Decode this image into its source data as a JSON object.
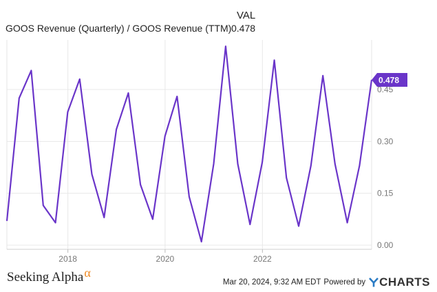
{
  "header": {
    "val_label": "VAL",
    "series_name": "GOOS Revenue (Quarterly) / GOOS Revenue (TTM)",
    "series_value": "0.478"
  },
  "footer": {
    "brand": "Seeking Alpha",
    "brand_mark": "α",
    "timestamp": "Mar 20, 2024, 9:32 AM EDT",
    "powered_by": "Powered by",
    "provider": "YCHARTS"
  },
  "colors": {
    "line": "#6a35c9",
    "grid": "#e4e4e4",
    "accent_brand": "#f08a24",
    "provider_y": "#2a7bc4"
  },
  "chart_data": {
    "type": "line",
    "title": "",
    "xlabel": "",
    "ylabel": "",
    "x_ticks": [
      "2018",
      "2020",
      "2022"
    ],
    "y_ticks": [
      "0.00",
      "0.15",
      "0.30",
      "0.45"
    ],
    "ylim": [
      -0.005,
      0.5
    ],
    "grid": true,
    "last_value_label": "0.478",
    "series": [
      {
        "name": "GOOS Revenue (Quarterly) / GOOS Revenue (TTM)",
        "points": [
          [
            "2016-09-30",
            0.07
          ],
          [
            "2016-12-31",
            0.425
          ],
          [
            "2017-04-01",
            0.505
          ],
          [
            "2017-06-30",
            0.115
          ],
          [
            "2017-09-30",
            0.065
          ],
          [
            "2017-12-31",
            0.385
          ],
          [
            "2018-03-31",
            0.48
          ],
          [
            "2018-06-30",
            0.205
          ],
          [
            "2018-09-30",
            0.08
          ],
          [
            "2018-12-31",
            0.335
          ],
          [
            "2019-03-31",
            0.44
          ],
          [
            "2019-06-30",
            0.175
          ],
          [
            "2019-09-30",
            0.075
          ],
          [
            "2019-12-31",
            0.315
          ],
          [
            "2020-03-31",
            0.43
          ],
          [
            "2020-06-30",
            0.14
          ],
          [
            "2020-09-30",
            0.01
          ],
          [
            "2020-12-31",
            0.235
          ],
          [
            "2021-03-31",
            0.575
          ],
          [
            "2021-06-30",
            0.235
          ],
          [
            "2021-09-30",
            0.06
          ],
          [
            "2021-12-31",
            0.24
          ],
          [
            "2022-03-31",
            0.535
          ],
          [
            "2022-06-30",
            0.195
          ],
          [
            "2022-09-30",
            0.055
          ],
          [
            "2022-12-31",
            0.23
          ],
          [
            "2023-03-31",
            0.49
          ],
          [
            "2023-06-30",
            0.235
          ],
          [
            "2023-09-30",
            0.065
          ],
          [
            "2023-12-31",
            0.23
          ],
          [
            "2024-03-31",
            0.478
          ]
        ]
      }
    ]
  }
}
